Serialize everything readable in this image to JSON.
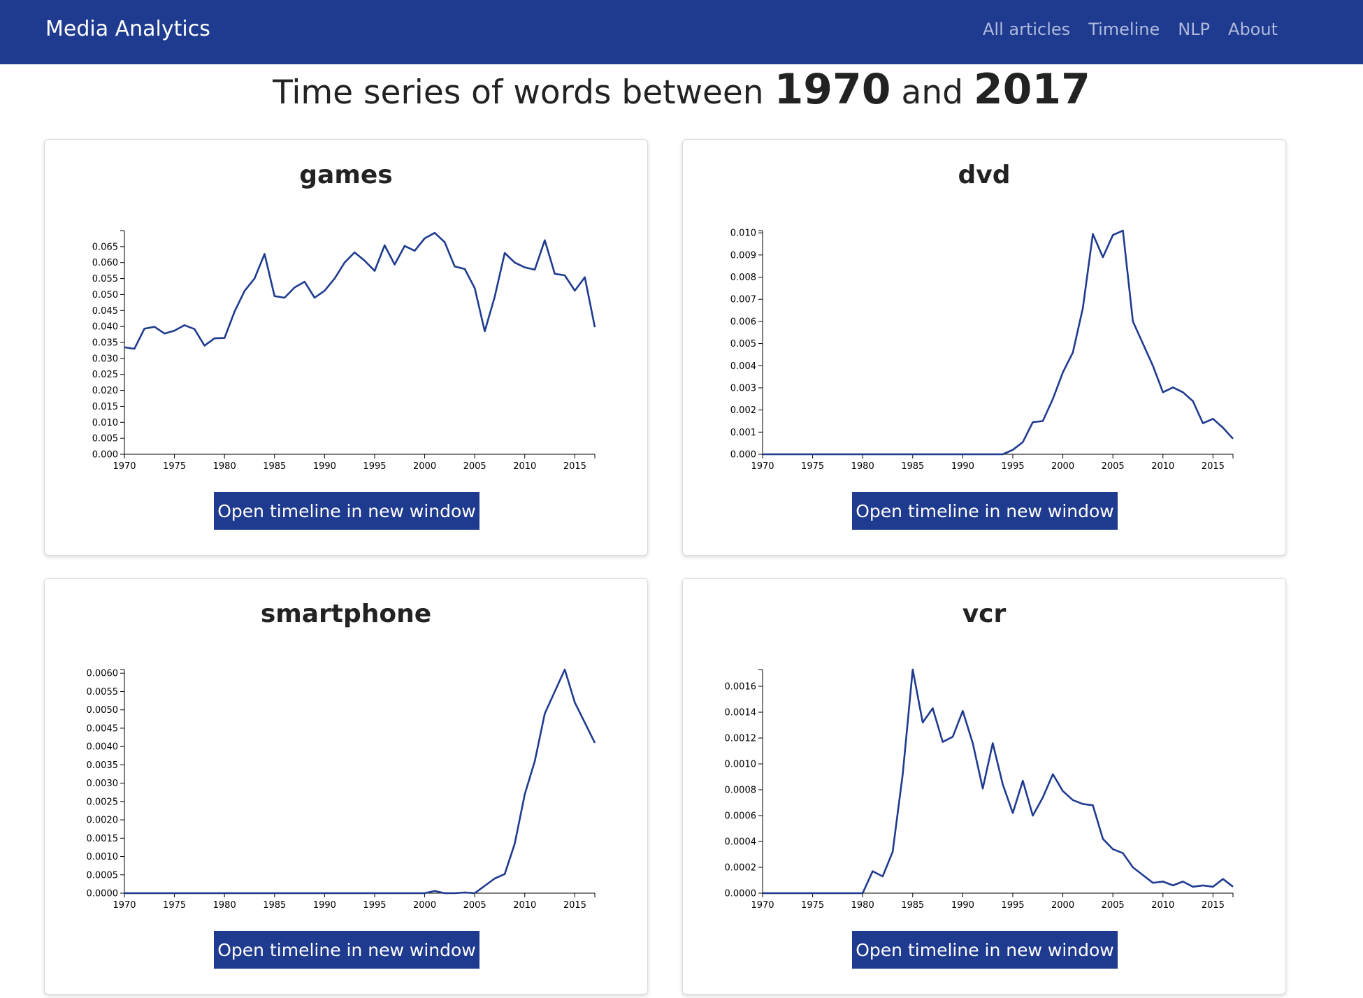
{
  "navbar": {
    "brand": "Media Analytics",
    "links": [
      "All articles",
      "Timeline",
      "NLP",
      "About"
    ]
  },
  "page": {
    "title_prefix": "Time series of words between",
    "start_year": "1970",
    "title_and": "and",
    "end_year": "2017"
  },
  "colors": {
    "navbar": "#1f3b8f",
    "line": "#1f3b8f",
    "button": "#1f3b8f"
  },
  "cards": [
    {
      "word": "games",
      "button_label": "Open timeline in new window"
    },
    {
      "word": "dvd",
      "button_label": "Open timeline in new window"
    },
    {
      "word": "smartphone",
      "button_label": "Open timeline in new window"
    },
    {
      "word": "vcr",
      "button_label": "Open timeline in new window"
    }
  ],
  "chart_data": [
    {
      "type": "line",
      "title": "games",
      "x": [
        1970,
        1971,
        1972,
        1973,
        1974,
        1975,
        1976,
        1977,
        1978,
        1979,
        1980,
        1981,
        1982,
        1983,
        1984,
        1985,
        1986,
        1987,
        1988,
        1989,
        1990,
        1991,
        1992,
        1993,
        1994,
        1995,
        1996,
        1997,
        1998,
        1999,
        2000,
        2001,
        2002,
        2003,
        2004,
        2005,
        2006,
        2007,
        2008,
        2009,
        2010,
        2011,
        2012,
        2013,
        2014,
        2015,
        2016,
        2017
      ],
      "y": [
        0.0335,
        0.033,
        0.0393,
        0.0399,
        0.0378,
        0.0387,
        0.0404,
        0.0392,
        0.034,
        0.0363,
        0.0364,
        0.0446,
        0.0511,
        0.055,
        0.0627,
        0.0495,
        0.049,
        0.0522,
        0.054,
        0.049,
        0.0512,
        0.055,
        0.06,
        0.0632,
        0.0606,
        0.0574,
        0.0654,
        0.0594,
        0.0652,
        0.0637,
        0.0676,
        0.0693,
        0.0664,
        0.0588,
        0.058,
        0.052,
        0.0385,
        0.0493,
        0.063,
        0.06,
        0.0585,
        0.0578,
        0.067,
        0.0565,
        0.056,
        0.0512,
        0.0554,
        0.0398
      ],
      "xlim": [
        1970,
        2017
      ],
      "ylim": [
        0,
        0.07
      ],
      "yticks": [
        "0.000",
        "0.005",
        "0.010",
        "0.015",
        "0.020",
        "0.025",
        "0.030",
        "0.035",
        "0.040",
        "0.045",
        "0.050",
        "0.055",
        "0.060",
        "0.065"
      ],
      "ytick_values": [
        0,
        0.005,
        0.01,
        0.015,
        0.02,
        0.025,
        0.03,
        0.035,
        0.04,
        0.045,
        0.05,
        0.055,
        0.06,
        0.065
      ],
      "xticks": [
        1970,
        1975,
        1980,
        1985,
        1990,
        1995,
        2000,
        2005,
        2010,
        2015
      ]
    },
    {
      "type": "line",
      "title": "dvd",
      "x": [
        1970,
        1971,
        1972,
        1973,
        1974,
        1975,
        1976,
        1977,
        1978,
        1979,
        1980,
        1981,
        1982,
        1983,
        1984,
        1985,
        1986,
        1987,
        1988,
        1989,
        1990,
        1991,
        1992,
        1993,
        1994,
        1995,
        1996,
        1997,
        1998,
        1999,
        2000,
        2001,
        2002,
        2003,
        2004,
        2005,
        2006,
        2007,
        2008,
        2009,
        2010,
        2011,
        2012,
        2013,
        2014,
        2015,
        2016,
        2017
      ],
      "y": [
        0,
        0,
        0,
        0,
        0,
        0,
        0,
        0,
        0,
        0,
        0,
        0,
        0,
        0,
        0,
        0,
        0,
        0,
        0,
        0,
        0,
        0,
        0,
        0,
        0,
        0.0002,
        0.00055,
        0.00145,
        0.0015,
        0.0025,
        0.0037,
        0.0046,
        0.0066,
        0.00995,
        0.0089,
        0.0099,
        0.0101,
        0.006,
        0.005,
        0.004,
        0.0028,
        0.00302,
        0.0028,
        0.0024,
        0.0014,
        0.0016,
        0.0012,
        0.0007
      ],
      "xlim": [
        1970,
        2017
      ],
      "ylim": [
        0,
        0.0101
      ],
      "yticks": [
        "0.000",
        "0.001",
        "0.002",
        "0.003",
        "0.004",
        "0.005",
        "0.006",
        "0.007",
        "0.008",
        "0.009",
        "0.010"
      ],
      "ytick_values": [
        0,
        0.001,
        0.002,
        0.003,
        0.004,
        0.005,
        0.006,
        0.007,
        0.008,
        0.009,
        0.01
      ],
      "xticks": [
        1970,
        1975,
        1980,
        1985,
        1990,
        1995,
        2000,
        2005,
        2010,
        2015
      ]
    },
    {
      "type": "line",
      "title": "smartphone",
      "x": [
        1970,
        1971,
        1972,
        1973,
        1974,
        1975,
        1976,
        1977,
        1978,
        1979,
        1980,
        1981,
        1982,
        1983,
        1984,
        1985,
        1986,
        1987,
        1988,
        1989,
        1990,
        1991,
        1992,
        1993,
        1994,
        1995,
        1996,
        1997,
        1998,
        1999,
        2000,
        2001,
        2002,
        2003,
        2004,
        2005,
        2006,
        2007,
        2008,
        2009,
        2010,
        2011,
        2012,
        2013,
        2014,
        2015,
        2016,
        2017
      ],
      "y": [
        0,
        0,
        0,
        0,
        0,
        0,
        0,
        0,
        0,
        0,
        0,
        0,
        0,
        0,
        0,
        0,
        0,
        0,
        0,
        0,
        0,
        0,
        0,
        0,
        0,
        0,
        0,
        0,
        0,
        0,
        0,
        6e-05,
        0,
        0,
        2e-05,
        0,
        0.0002,
        0.0004,
        0.00052,
        0.00135,
        0.0027,
        0.0036,
        0.0049,
        0.0055,
        0.0061,
        0.0052,
        0.00465,
        0.0041
      ],
      "xlim": [
        1970,
        2017
      ],
      "ylim": [
        0,
        0.0061
      ],
      "yticks": [
        "0.0000",
        "0.0005",
        "0.0010",
        "0.0015",
        "0.0020",
        "0.0025",
        "0.0030",
        "0.0035",
        "0.0040",
        "0.0045",
        "0.0050",
        "0.0055",
        "0.0060"
      ],
      "ytick_values": [
        0,
        0.0005,
        0.001,
        0.0015,
        0.002,
        0.0025,
        0.003,
        0.0035,
        0.004,
        0.0045,
        0.005,
        0.0055,
        0.006
      ],
      "xticks": [
        1970,
        1975,
        1980,
        1985,
        1990,
        1995,
        2000,
        2005,
        2010,
        2015
      ]
    },
    {
      "type": "line",
      "title": "vcr",
      "x": [
        1970,
        1971,
        1972,
        1973,
        1974,
        1975,
        1976,
        1977,
        1978,
        1979,
        1980,
        1981,
        1982,
        1983,
        1984,
        1985,
        1986,
        1987,
        1988,
        1989,
        1990,
        1991,
        1992,
        1993,
        1994,
        1995,
        1996,
        1997,
        1998,
        1999,
        2000,
        2001,
        2002,
        2003,
        2004,
        2005,
        2006,
        2007,
        2008,
        2009,
        2010,
        2011,
        2012,
        2013,
        2014,
        2015,
        2016,
        2017
      ],
      "y": [
        0,
        0,
        0,
        0,
        0,
        0,
        0,
        0,
        0,
        0,
        0,
        0.00017,
        0.00013,
        0.00032,
        0.00092,
        0.00173,
        0.00132,
        0.00143,
        0.00117,
        0.00121,
        0.00141,
        0.00116,
        0.00081,
        0.00116,
        0.00084,
        0.00062,
        0.00087,
        0.0006,
        0.00074,
        0.00092,
        0.00079,
        0.00072,
        0.00069,
        0.00068,
        0.00042,
        0.00034,
        0.00031,
        0.0002,
        0.00014,
        8e-05,
        9e-05,
        6e-05,
        9e-05,
        5e-05,
        6e-05,
        5e-05,
        0.00011,
        5e-05
      ],
      "xlim": [
        1970,
        2017
      ],
      "ylim": [
        0,
        0.00173
      ],
      "yticks": [
        "0.0000",
        "0.0002",
        "0.0004",
        "0.0006",
        "0.0008",
        "0.0010",
        "0.0012",
        "0.0014",
        "0.0016"
      ],
      "ytick_values": [
        0,
        0.0002,
        0.0004,
        0.0006,
        0.0008,
        0.001,
        0.0012,
        0.0014,
        0.0016
      ],
      "xticks": [
        1970,
        1975,
        1980,
        1985,
        1990,
        1995,
        2000,
        2005,
        2010,
        2015
      ]
    }
  ]
}
